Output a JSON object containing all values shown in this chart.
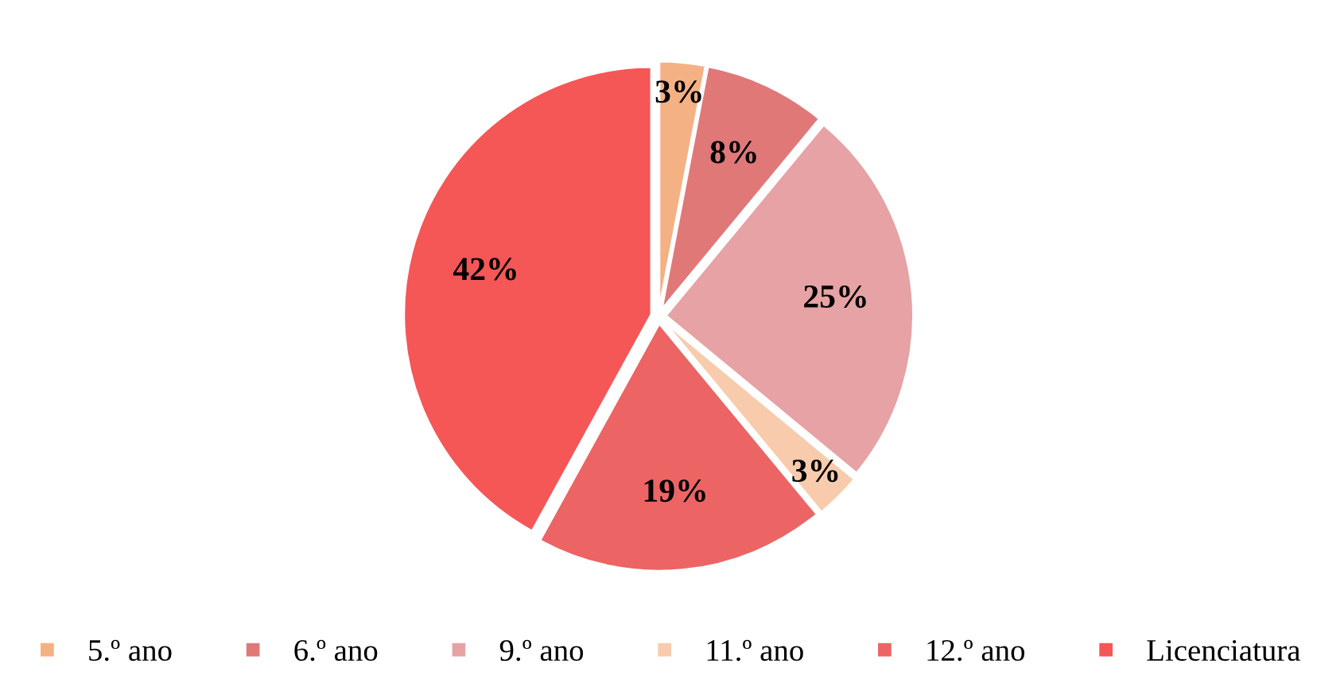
{
  "chart_data": {
    "type": "pie",
    "categories": [
      "5.º ano",
      "6.º ano",
      "9.º ano",
      "11.º ano",
      "12.º ano",
      "Licenciatura"
    ],
    "values": [
      3,
      8,
      25,
      3,
      19,
      42
    ],
    "value_labels": [
      "3%",
      "8%",
      "25%",
      "3%",
      "19%",
      "42%"
    ],
    "colors": [
      "#f4b183",
      "#e07878",
      "#e6a2a4",
      "#f8cbad",
      "#ec6464",
      "#f55656"
    ],
    "legend": "bottom"
  }
}
